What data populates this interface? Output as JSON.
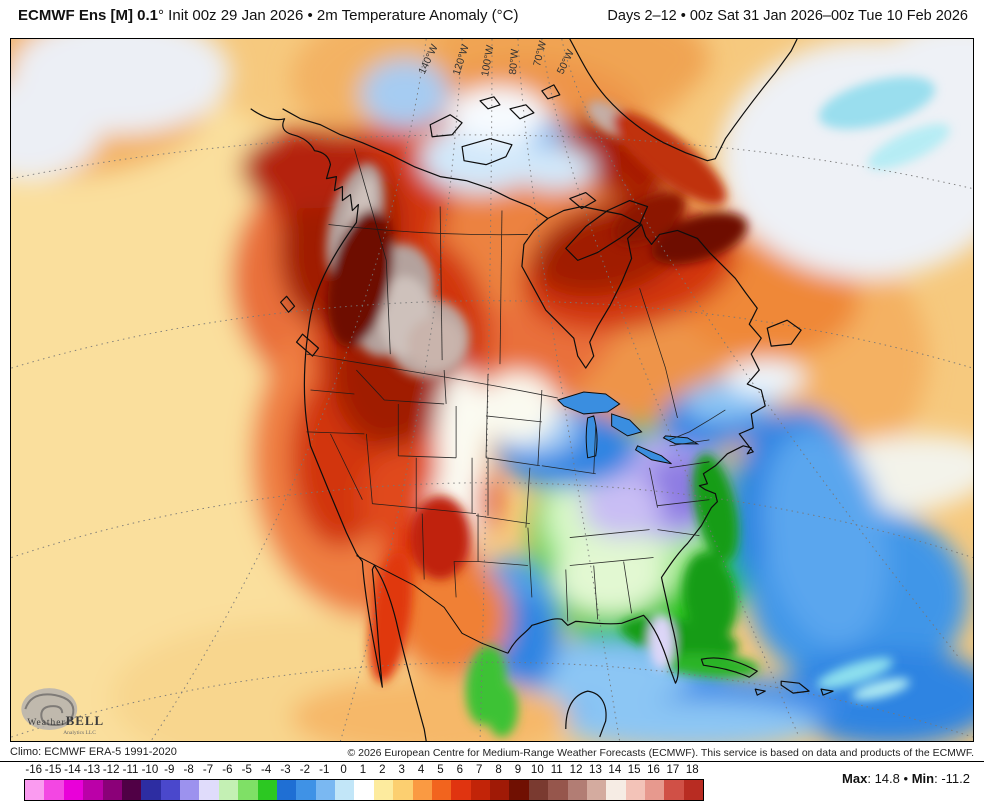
{
  "header": {
    "title_left_bold": "ECMWF Ens [M] 0.1",
    "title_left_rest": "° Init 00z 29 Jan 2026 • 2m Temperature Anomaly (°C)",
    "title_right": "Days 2–12 • 00z Sat 31 Jan 2026–00z Tue 10 Feb 2026"
  },
  "map": {
    "meridians": [
      "140°W",
      "120°W",
      "100°W",
      "80°W",
      "70°W",
      "50°W"
    ],
    "logo_main_1": "Weather",
    "logo_main_2": "BELL",
    "logo_sub": "Analytics LLC"
  },
  "footer": {
    "climo": "Climo: ECMWF ERA-5 1991-2020",
    "copyright": "© 2026 European Centre for Medium-Range Weather Forecasts (ECMWF). This service is based on data and products of the ECMWF."
  },
  "colorbar": {
    "labels": [
      "-16",
      "-15",
      "-14",
      "-13",
      "-12",
      "-11",
      "-10",
      "-9",
      "-8",
      "-7",
      "-6",
      "-5",
      "-4",
      "-3",
      "-2",
      "-1",
      "0",
      "1",
      "2",
      "3",
      "4",
      "5",
      "6",
      "7",
      "8",
      "9",
      "10",
      "11",
      "12",
      "13",
      "14",
      "15",
      "16",
      "17",
      "18"
    ],
    "colors": [
      "#fa9bf0",
      "#f347e3",
      "#e900d9",
      "#bb00a8",
      "#8b0078",
      "#500045",
      "#2d2da2",
      "#4a48cc",
      "#9c92ee",
      "#e0dcfb",
      "#c4f0b4",
      "#7fe066",
      "#2cc822",
      "#1f6fd4",
      "#3f92e6",
      "#7ab8f2",
      "#c2e6f8",
      "#ffffff",
      "#fdeb9e",
      "#fccf70",
      "#fa9a42",
      "#f2641e",
      "#e03410",
      "#c22408",
      "#a01a06",
      "#701002",
      "#7a3a30",
      "#96564c",
      "#b27d74",
      "#d4ab9f",
      "#f6ece4",
      "#f3c3b8",
      "#e7998e",
      "#d05046",
      "#b82c22"
    ],
    "stats": {
      "max_label": "Max",
      "max_value": "14.8",
      "bullet": "•",
      "min_label": "Min",
      "min_value": "-11.2"
    }
  }
}
